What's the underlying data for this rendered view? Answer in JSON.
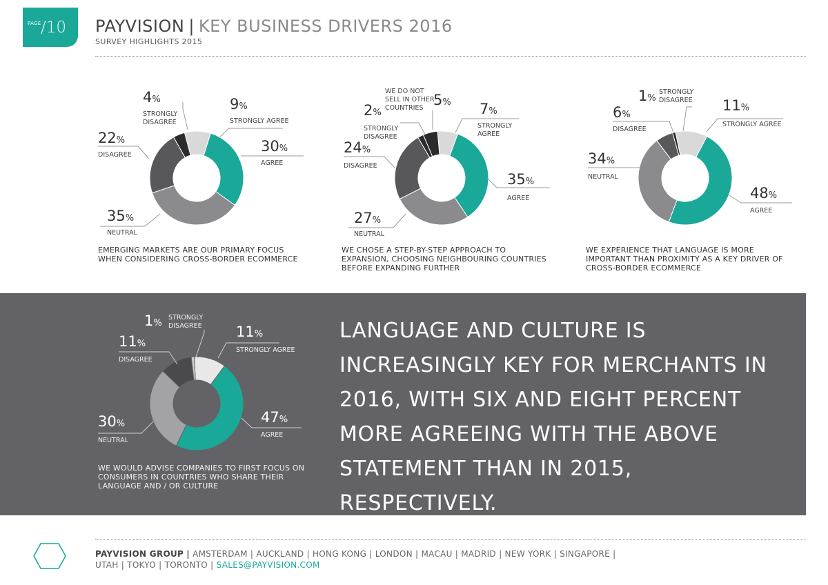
{
  "header": {
    "page_label": "PAGE",
    "page_number": "/10",
    "brand": "PAYVISION",
    "separator": "|",
    "title": "KEY BUSINESS DRIVERS 2016",
    "subtitle": "SURVEY HIGHLIGHTS 2015"
  },
  "colors": {
    "teal": "#1aa898",
    "strongly_agree": "#d9d9d9",
    "neutral": "#8b8b8d",
    "disagree": "#58585b",
    "strongly_disagree": "#2b2b2d",
    "panel": "#636266"
  },
  "chart_data": [
    {
      "type": "pie",
      "variant": "donut",
      "slices": [
        {
          "label": "STRONGLY AGREE",
          "value": 9,
          "percent": "9"
        },
        {
          "label": "AGREE",
          "value": 30,
          "percent": "30"
        },
        {
          "label": "NEUTRAL",
          "value": 35,
          "percent": "35"
        },
        {
          "label": "DISAGREE",
          "value": 22,
          "percent": "22"
        },
        {
          "label": "STRONGLY DISAGREE",
          "value": 4,
          "percent": "4"
        }
      ],
      "caption": "EMERGING MARKETS ARE OUR PRIMARY FOCUS WHEN CONSIDERING CROSS-BORDER ECOMMERCE"
    },
    {
      "type": "pie",
      "variant": "donut",
      "slices": [
        {
          "label": "STRONGLY AGREE",
          "value": 7,
          "percent": "7"
        },
        {
          "label": "AGREE",
          "value": 35,
          "percent": "35"
        },
        {
          "label": "NEUTRAL",
          "value": 27,
          "percent": "27"
        },
        {
          "label": "DISAGREE",
          "value": 24,
          "percent": "24"
        },
        {
          "label": "STRONGLY DISAGREE",
          "value": 2,
          "percent": "2"
        },
        {
          "label": "WE DO NOT SELL IN OTHER COUNTRIES",
          "value": 5,
          "percent": "5"
        }
      ],
      "caption": "WE CHOSE A STEP-BY-STEP APPROACH TO EXPANSION, CHOOSING NEIGHBOURING COUNTRIES BEFORE EXPANDING FURTHER"
    },
    {
      "type": "pie",
      "variant": "donut",
      "slices": [
        {
          "label": "STRONGLY AGREE",
          "value": 11,
          "percent": "11"
        },
        {
          "label": "AGREE",
          "value": 48,
          "percent": "48"
        },
        {
          "label": "NEUTRAL",
          "value": 34,
          "percent": "34"
        },
        {
          "label": "DISAGREE",
          "value": 6,
          "percent": "6"
        },
        {
          "label": "STRONGLY DISAGREE",
          "value": 1,
          "percent": "1"
        }
      ],
      "caption": "WE EXPERIENCE THAT LANGUAGE IS MORE IMPORTANT THAN PROXIMITY AS A KEY DRIVER OF CROSS-BORDER ECOMMERCE"
    },
    {
      "type": "pie",
      "variant": "donut",
      "slices": [
        {
          "label": "STRONGLY AGREE",
          "value": 11,
          "percent": "11"
        },
        {
          "label": "AGREE",
          "value": 47,
          "percent": "47"
        },
        {
          "label": "NEUTRAL",
          "value": 30,
          "percent": "30"
        },
        {
          "label": "DISAGREE",
          "value": 11,
          "percent": "11"
        },
        {
          "label": "STRONGLY DISAGREE",
          "value": 1,
          "percent": "1"
        }
      ],
      "caption": "WE WOULD ADVISE COMPANIES TO FIRST FOCUS ON CONSUMERS IN COUNTRIES WHO SHARE THEIR LANGUAGE AND / OR CULTURE"
    }
  ],
  "highlight": {
    "text": "LANGUAGE AND CULTURE IS INCREASINGLY KEY FOR MERCHANTS IN 2016, WITH SIX AND EIGHT PERCENT MORE AGREEING WITH THE ABOVE STATEMENT THAN IN 2015, RESPECTIVELY."
  },
  "footer": {
    "group": "PAYVISION GROUP",
    "separator": "|",
    "line1": "AMSTERDAM | AUCKLAND | HONG KONG | LONDON | MACAU | MADRID | NEW YORK | SINGAPORE |",
    "line2": "UTAH | TOKYO | TORONTO |",
    "email": "SALES@PAYVISION.COM"
  }
}
